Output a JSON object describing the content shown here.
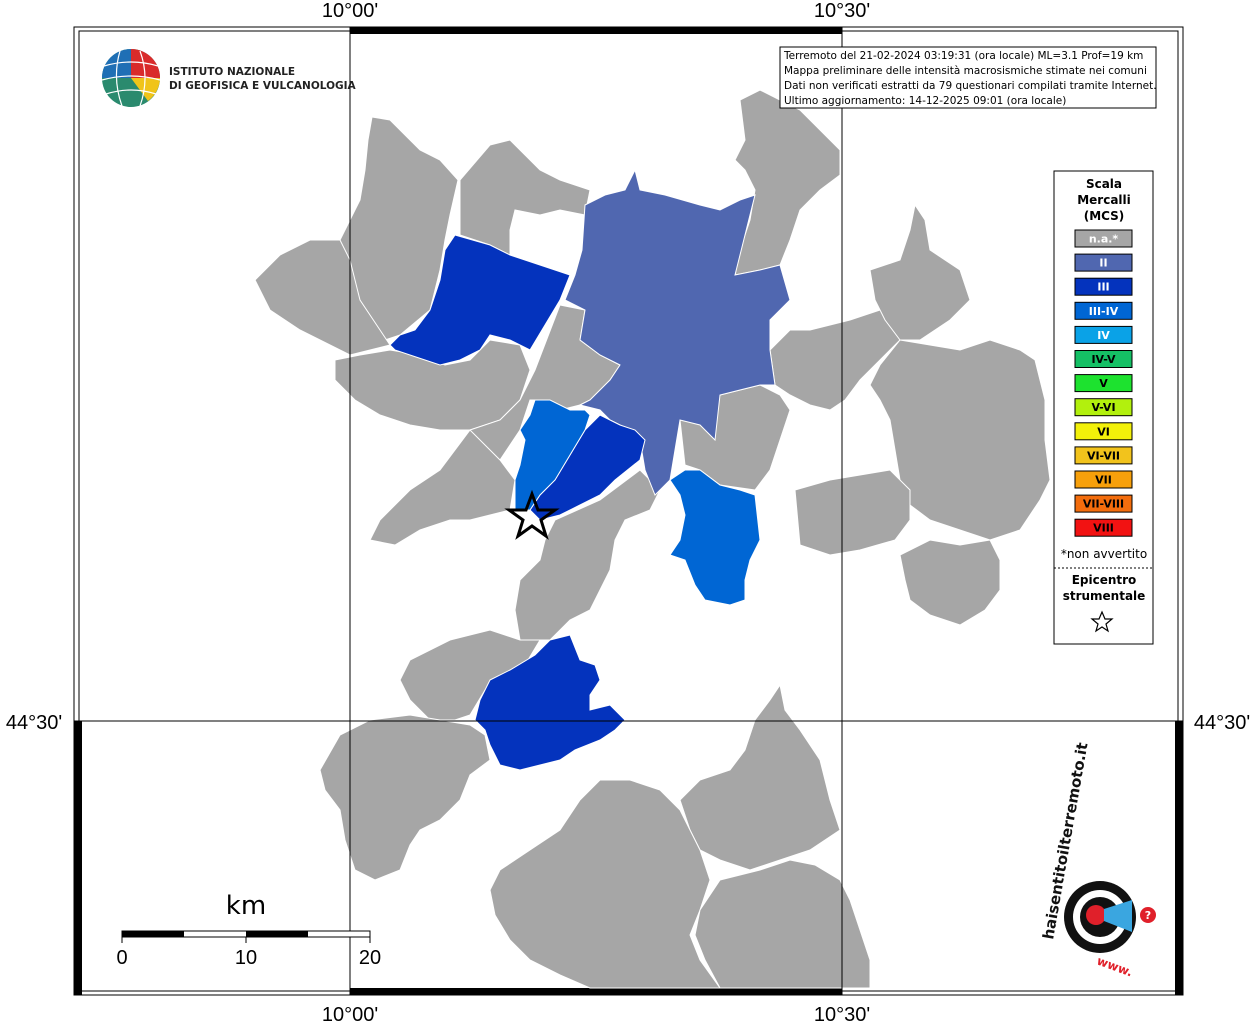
{
  "map": {
    "type": "macroseismic intensity map",
    "lon_ticks": [
      "10°00'",
      "10°30'"
    ],
    "lat_ticks": [
      "44°30'"
    ]
  },
  "logo_ingv": {
    "line1": "ISTITUTO NAZIONALE",
    "line2": "DI GEOFISICA E VULCANOLOGIA"
  },
  "info_box": {
    "line1": "Terremoto del 21-02-2024 03:19:31 (ora locale) ML=3.1 Prof=19 km",
    "line2": "Mappa preliminare delle intensità macrosismiche stimate nei comuni",
    "line3": "Dati non verificati estratti da 79 questionari compilati tramite Internet.",
    "line4": "Ultimo aggiornamento: 14-12-2025 09:01 (ora locale)"
  },
  "legend": {
    "title1": "Scala",
    "title2": "Mercalli",
    "title3": "(MCS)",
    "items": [
      {
        "label": "n.a.*",
        "color": "#a6a6a6"
      },
      {
        "label": "II",
        "color": "#5067b0"
      },
      {
        "label": "III",
        "color": "#0433bd"
      },
      {
        "label": "III-IV",
        "color": "#0066d4"
      },
      {
        "label": "IV",
        "color": "#0aa2e7"
      },
      {
        "label": "IV-V",
        "color": "#15c065"
      },
      {
        "label": "V",
        "color": "#1de22f"
      },
      {
        "label": "V-VI",
        "color": "#b2f00d"
      },
      {
        "label": "VI",
        "color": "#f3f10a"
      },
      {
        "label": "VI-VII",
        "color": "#f2c31c"
      },
      {
        "label": "VII",
        "color": "#f7a00b"
      },
      {
        "label": "VII-VIII",
        "color": "#f36d0d"
      },
      {
        "label": "VIII",
        "color": "#f21212"
      }
    ],
    "note": "*non avvertito",
    "epicenter1": "Epicentro",
    "epicenter2": "strumentale"
  },
  "scale_bar": {
    "unit": "km",
    "labels": [
      "0",
      "10",
      "20"
    ]
  },
  "logo_hsit": {
    "text": "haisentitoilterremoto.it",
    "url": "www.",
    "question": "?"
  },
  "colors": {
    "na": "#a6a6a6",
    "II": "#5067b0",
    "III": "#0433bd",
    "III-IV": "#0066d4"
  }
}
